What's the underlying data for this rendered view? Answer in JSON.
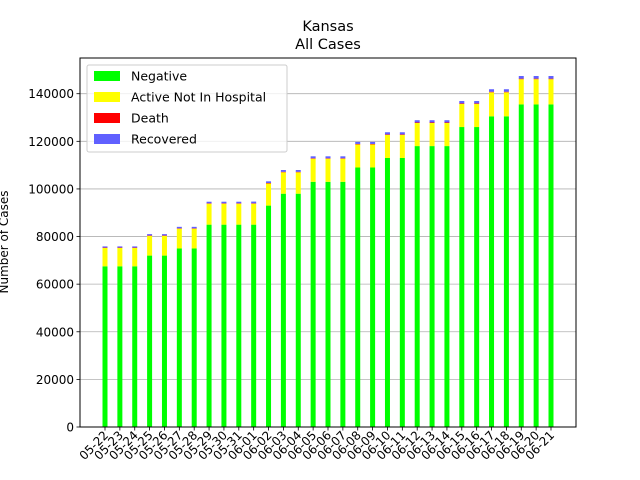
{
  "chart_data": {
    "type": "bar",
    "stacked": true,
    "title": "Kansas",
    "subtitle": "All Cases",
    "xlabel": "",
    "ylabel": "Number of Cases",
    "ylim": [
      0,
      155000
    ],
    "yticks": [
      0,
      20000,
      40000,
      60000,
      80000,
      100000,
      120000,
      140000
    ],
    "grid": "horizontal",
    "legend_position": "top-left",
    "categories": [
      "05-22",
      "05-23",
      "05-24",
      "05-25",
      "05-26",
      "05-27",
      "05-28",
      "05-29",
      "05-30",
      "05-31",
      "06-01",
      "06-02",
      "06-03",
      "06-04",
      "06-05",
      "06-06",
      "06-07",
      "06-08",
      "06-09",
      "06-10",
      "06-11",
      "06-12",
      "06-13",
      "06-14",
      "06-15",
      "06-16",
      "06-17",
      "06-18",
      "06-19",
      "06-20",
      "06-21"
    ],
    "series": [
      {
        "name": "Negative",
        "color": "#00ff00",
        "values": [
          67500,
          67500,
          67500,
          72000,
          72000,
          75000,
          75000,
          85000,
          85000,
          85000,
          85000,
          93000,
          98000,
          98000,
          103000,
          103000,
          103000,
          109000,
          109000,
          113000,
          113000,
          118000,
          118000,
          118000,
          126000,
          126000,
          130500,
          130500,
          135500,
          135500,
          135500
        ]
      },
      {
        "name": "Active Not In Hospital",
        "color": "#ffff00",
        "values": [
          7700,
          7700,
          7700,
          8300,
          8300,
          8300,
          8300,
          8800,
          8800,
          8800,
          8800,
          9300,
          9000,
          9000,
          9700,
          9700,
          9700,
          9700,
          9700,
          9700,
          9700,
          9700,
          9700,
          9700,
          9700,
          9700,
          10100,
          10100,
          10600,
          10600,
          10600
        ]
      },
      {
        "name": "Death",
        "color": "#ff0000",
        "values": [
          160,
          160,
          160,
          170,
          170,
          175,
          175,
          180,
          180,
          180,
          185,
          190,
          195,
          195,
          200,
          200,
          200,
          205,
          205,
          210,
          210,
          215,
          215,
          215,
          225,
          225,
          230,
          230,
          235,
          235,
          235
        ]
      },
      {
        "name": "Recovered",
        "color": "#6060ff",
        "values": [
          500,
          500,
          500,
          550,
          550,
          600,
          600,
          650,
          650,
          650,
          700,
          700,
          750,
          750,
          800,
          800,
          800,
          850,
          850,
          900,
          900,
          950,
          950,
          950,
          1000,
          1000,
          1050,
          1050,
          1100,
          1100,
          1100
        ]
      }
    ]
  }
}
